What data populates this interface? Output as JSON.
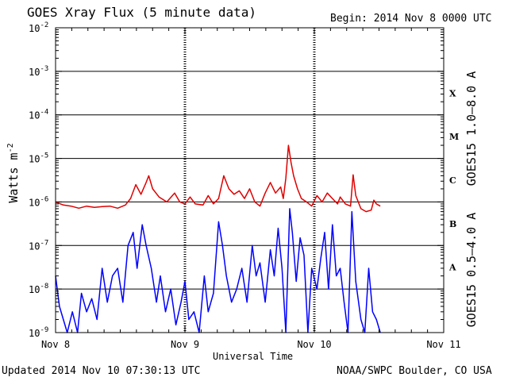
{
  "title": "GOES Xray Flux (5 minute data)",
  "begin": "Begin:  2014 Nov 8 0000 UTC",
  "updated": "Updated 2014 Nov 10 07:30:13 UTC",
  "credit": "NOAA/SWPC Boulder, CO USA",
  "colors": {
    "long": "#e00000",
    "short": "#0000ff",
    "frame": "#000000"
  },
  "chart_data": {
    "type": "line",
    "xlabel": "Universal Time",
    "ylabel_main": "Watts m",
    "ylabel_sup": "-2",
    "yscale": "log",
    "ylim": [
      1e-09,
      0.01
    ],
    "xlim_days": [
      0,
      3
    ],
    "x_ticks": [
      "Nov 8",
      "Nov 9",
      "Nov 10",
      "Nov 11"
    ],
    "y_ticks": [
      {
        "base": "10",
        "exp": "-2"
      },
      {
        "base": "10",
        "exp": "-3"
      },
      {
        "base": "10",
        "exp": "-4"
      },
      {
        "base": "10",
        "exp": "-5"
      },
      {
        "base": "10",
        "exp": "-6"
      },
      {
        "base": "10",
        "exp": "-7"
      },
      {
        "base": "10",
        "exp": "-8"
      },
      {
        "base": "10",
        "exp": "-9"
      }
    ],
    "flare_classes": [
      "X",
      "M",
      "C",
      "B",
      "A"
    ],
    "grid": "horizontal at each decade; dashed verticals at day boundaries",
    "series": [
      {
        "name": "GOES15 1.0–8.0 A",
        "color": "#e00000",
        "points": [
          [
            0.0,
            1e-06
          ],
          [
            0.06,
            8.5e-07
          ],
          [
            0.12,
            8e-07
          ],
          [
            0.18,
            7.2e-07
          ],
          [
            0.24,
            8e-07
          ],
          [
            0.3,
            7.5e-07
          ],
          [
            0.36,
            7.8e-07
          ],
          [
            0.42,
            8e-07
          ],
          [
            0.48,
            7.2e-07
          ],
          [
            0.54,
            8.5e-07
          ],
          [
            0.58,
            1.2e-06
          ],
          [
            0.62,
            2.5e-06
          ],
          [
            0.66,
            1.5e-06
          ],
          [
            0.7,
            2.8e-06
          ],
          [
            0.72,
            4e-06
          ],
          [
            0.75,
            2e-06
          ],
          [
            0.8,
            1.3e-06
          ],
          [
            0.86,
            1e-06
          ],
          [
            0.92,
            1.6e-06
          ],
          [
            0.96,
            1e-06
          ],
          [
            1.0,
            9e-07
          ],
          [
            1.04,
            1.3e-06
          ],
          [
            1.08,
            9e-07
          ],
          [
            1.14,
            8.5e-07
          ],
          [
            1.18,
            1.4e-06
          ],
          [
            1.22,
            9e-07
          ],
          [
            1.26,
            1.2e-06
          ],
          [
            1.3,
            4e-06
          ],
          [
            1.34,
            2e-06
          ],
          [
            1.38,
            1.5e-06
          ],
          [
            1.42,
            1.8e-06
          ],
          [
            1.46,
            1.2e-06
          ],
          [
            1.5,
            2e-06
          ],
          [
            1.54,
            1e-06
          ],
          [
            1.58,
            8e-07
          ],
          [
            1.62,
            1.6e-06
          ],
          [
            1.66,
            2.8e-06
          ],
          [
            1.7,
            1.6e-06
          ],
          [
            1.74,
            2.2e-06
          ],
          [
            1.76,
            1.2e-06
          ],
          [
            1.78,
            3.5e-06
          ],
          [
            1.8,
            2e-05
          ],
          [
            1.82,
            8e-06
          ],
          [
            1.84,
            4e-06
          ],
          [
            1.87,
            2e-06
          ],
          [
            1.9,
            1.2e-06
          ],
          [
            1.94,
            1e-06
          ],
          [
            1.98,
            8e-07
          ],
          [
            2.02,
            1.4e-06
          ],
          [
            2.06,
            1e-06
          ],
          [
            2.1,
            1.6e-06
          ],
          [
            2.14,
            1.2e-06
          ],
          [
            2.18,
            9e-07
          ],
          [
            2.2,
            1.3e-06
          ],
          [
            2.24,
            9e-07
          ],
          [
            2.28,
            8e-07
          ],
          [
            2.3,
            4.2e-06
          ],
          [
            2.32,
            1.4e-06
          ],
          [
            2.36,
            7e-07
          ],
          [
            2.4,
            6e-07
          ],
          [
            2.44,
            6.5e-07
          ],
          [
            2.46,
            1.1e-06
          ],
          [
            2.48,
            9e-07
          ],
          [
            2.51,
            8e-07
          ]
        ]
      },
      {
        "name": "GOES15 0.5–4.0 A",
        "color": "#0000ff",
        "points": [
          [
            0.0,
            2e-08
          ],
          [
            0.03,
            4e-09
          ],
          [
            0.06,
            2e-09
          ],
          [
            0.09,
            1e-09
          ],
          [
            0.13,
            3e-09
          ],
          [
            0.17,
            1e-09
          ],
          [
            0.2,
            8e-09
          ],
          [
            0.24,
            3e-09
          ],
          [
            0.28,
            6e-09
          ],
          [
            0.32,
            2e-09
          ],
          [
            0.36,
            3e-08
          ],
          [
            0.4,
            5e-09
          ],
          [
            0.44,
            2e-08
          ],
          [
            0.48,
            3e-08
          ],
          [
            0.52,
            5e-09
          ],
          [
            0.56,
            1e-07
          ],
          [
            0.6,
            2e-07
          ],
          [
            0.63,
            3e-08
          ],
          [
            0.67,
            3e-07
          ],
          [
            0.7,
            1e-07
          ],
          [
            0.74,
            3e-08
          ],
          [
            0.78,
            5e-09
          ],
          [
            0.81,
            2e-08
          ],
          [
            0.85,
            3e-09
          ],
          [
            0.89,
            1e-08
          ],
          [
            0.93,
            1.5e-09
          ],
          [
            0.97,
            5e-09
          ],
          [
            1.0,
            1.5e-08
          ],
          [
            1.03,
            2e-09
          ],
          [
            1.07,
            3e-09
          ],
          [
            1.11,
            1e-09
          ],
          [
            1.15,
            2e-08
          ],
          [
            1.18,
            3e-09
          ],
          [
            1.22,
            8e-09
          ],
          [
            1.26,
            3.5e-07
          ],
          [
            1.29,
            1e-07
          ],
          [
            1.32,
            2e-08
          ],
          [
            1.36,
            5e-09
          ],
          [
            1.4,
            1e-08
          ],
          [
            1.44,
            3e-08
          ],
          [
            1.48,
            5e-09
          ],
          [
            1.52,
            1e-07
          ],
          [
            1.55,
            2e-08
          ],
          [
            1.58,
            4e-08
          ],
          [
            1.62,
            5e-09
          ],
          [
            1.66,
            8e-08
          ],
          [
            1.69,
            2e-08
          ],
          [
            1.72,
            2.5e-07
          ],
          [
            1.75,
            3e-08
          ],
          [
            1.78,
            1e-09
          ],
          [
            1.81,
            7e-07
          ],
          [
            1.83,
            2e-07
          ],
          [
            1.86,
            1.5e-08
          ],
          [
            1.89,
            1.5e-07
          ],
          [
            1.92,
            6e-08
          ],
          [
            1.95,
            1e-09
          ],
          [
            1.98,
            3e-08
          ],
          [
            2.02,
            1e-08
          ],
          [
            2.05,
            5e-08
          ],
          [
            2.08,
            2e-07
          ],
          [
            2.11,
            1e-08
          ],
          [
            2.14,
            3e-07
          ],
          [
            2.17,
            2e-08
          ],
          [
            2.2,
            3e-08
          ],
          [
            2.23,
            5e-09
          ],
          [
            2.26,
            1e-09
          ],
          [
            2.29,
            6e-07
          ],
          [
            2.32,
            1.5e-08
          ],
          [
            2.36,
            2e-09
          ],
          [
            2.39,
            1e-09
          ],
          [
            2.42,
            3e-08
          ],
          [
            2.45,
            3e-09
          ],
          [
            2.48,
            2e-09
          ],
          [
            2.51,
            1e-09
          ]
        ]
      }
    ]
  }
}
